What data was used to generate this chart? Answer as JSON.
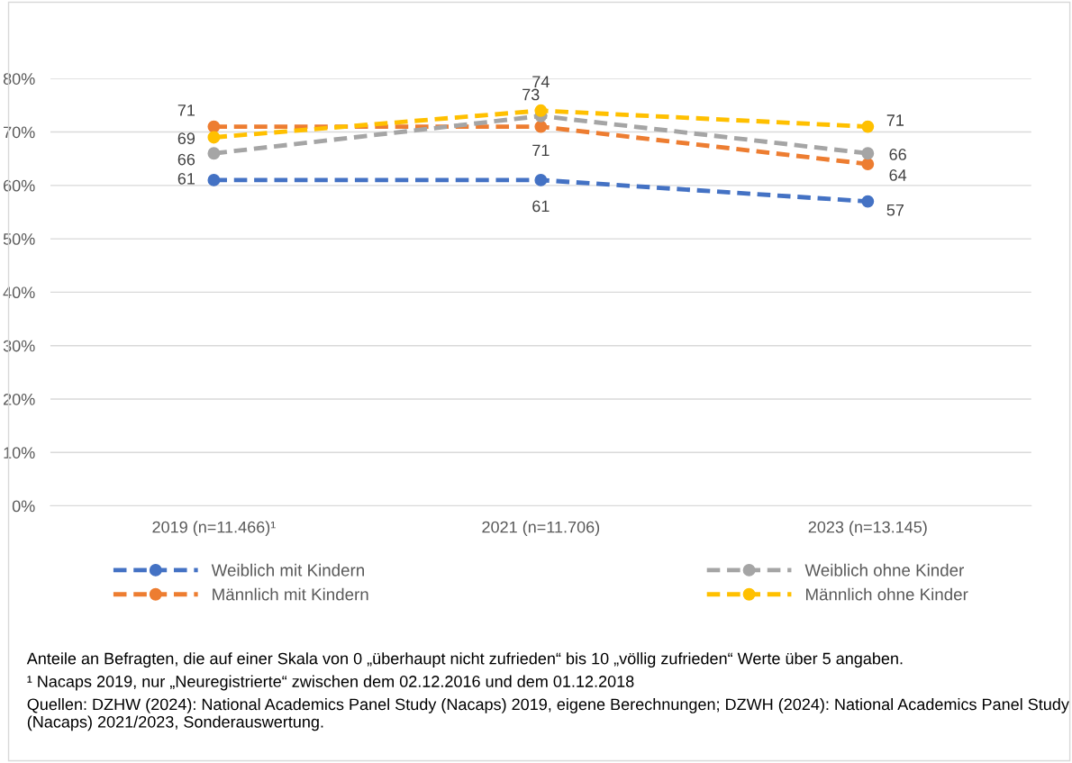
{
  "chart_data": {
    "type": "line",
    "categories": [
      "2019 (n=11.466)¹",
      "2021 (n=11.706)",
      "2023 (n=13.145)"
    ],
    "series": [
      {
        "name": "Weiblich mit Kindern",
        "color": "#4472c4",
        "values": [
          61,
          61,
          57
        ]
      },
      {
        "name": "Männlich mit Kindern",
        "color": "#ed7d31",
        "values": [
          71,
          71,
          64
        ]
      },
      {
        "name": "Weiblich ohne Kinder",
        "color": "#a5a5a5",
        "values": [
          66,
          73,
          66
        ]
      },
      {
        "name": "Männlich ohne Kinder",
        "color": "#ffc000",
        "values": [
          69,
          74,
          71
        ]
      }
    ],
    "ylim": [
      0,
      80
    ],
    "yticks": [
      {
        "value": 0,
        "label": "0%"
      },
      {
        "value": 10,
        "label": "10%"
      },
      {
        "value": 20,
        "label": "20%"
      },
      {
        "value": 30,
        "label": "30%"
      },
      {
        "value": 40,
        "label": "40%"
      },
      {
        "value": 50,
        "label": "50%"
      },
      {
        "value": 60,
        "label": "60%"
      },
      {
        "value": 70,
        "label": "70%"
      },
      {
        "value": 80,
        "label": "80%"
      }
    ],
    "grid": "y",
    "legend": "bottom",
    "marker": "circle",
    "line_style": "dashed",
    "data_labels": true,
    "annotations": [
      "Anteile an Befragten, die auf einer Skala von 0 „überhaupt nicht zufrieden“ bis 10 „völlig zufrieden“ Werte über 5 angaben.",
      "¹ Nacaps 2019, nur „Neuregistrierte“ zwischen dem 02.12.2016 und dem 01.12.2018",
      "Quellen: DZHW (2024): National Academics Panel Study (Nacaps) 2019, eigene Berechnungen; DZWH (2024): National Academics Panel Study (Nacaps) 2021/2023, Sonderauswertung."
    ]
  }
}
